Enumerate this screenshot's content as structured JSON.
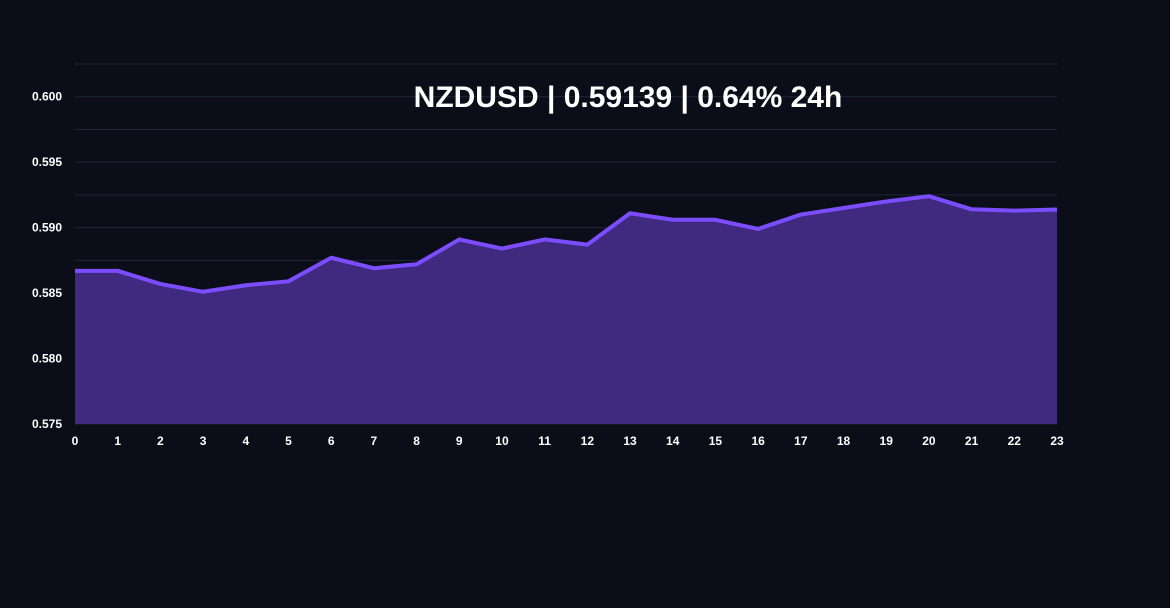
{
  "chart_data": {
    "type": "area",
    "title": "NZDUSD | 0.59139 | 0.64% 24h",
    "xlabel": "",
    "ylabel": "",
    "x": [
      0,
      1,
      2,
      3,
      4,
      5,
      6,
      7,
      8,
      9,
      10,
      11,
      12,
      13,
      14,
      15,
      16,
      17,
      18,
      19,
      20,
      21,
      22,
      23
    ],
    "series": [
      {
        "values": [
          0.5867,
          0.5867,
          0.5857,
          0.5851,
          0.5856,
          0.5859,
          0.5877,
          0.5869,
          0.5872,
          0.5891,
          0.5884,
          0.5891,
          0.5887,
          0.5911,
          0.5906,
          0.5906,
          0.5899,
          0.591,
          0.5915,
          0.592,
          0.5924,
          0.5914,
          0.5913,
          0.59139
        ]
      }
    ],
    "ylim": [
      0.575,
      0.6025
    ],
    "xlim": [
      0,
      23
    ],
    "yticks": [
      "0.575",
      "0.580",
      "0.585",
      "0.590",
      "0.595",
      "0.600"
    ],
    "xticks": [
      "0",
      "1",
      "2",
      "3",
      "4",
      "5",
      "6",
      "7",
      "8",
      "9",
      "10",
      "11",
      "12",
      "13",
      "14",
      "15",
      "16",
      "17",
      "18",
      "19",
      "20",
      "21",
      "22",
      "23"
    ],
    "grid": true,
    "colors": {
      "background": "#0b0e18",
      "line": "#7c4dff",
      "fill": "#3f2a80",
      "grid": "#1e2636",
      "text": "#ffffff"
    }
  }
}
